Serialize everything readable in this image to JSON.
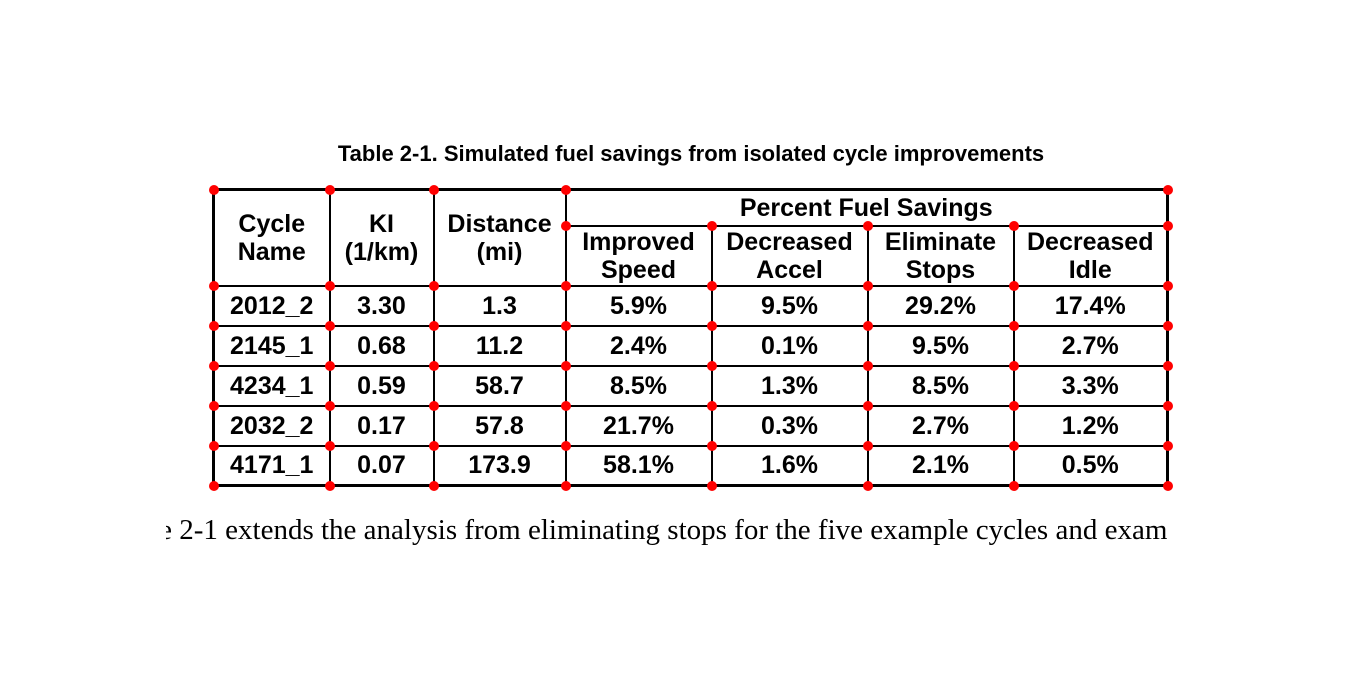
{
  "document": {
    "caption": "Table 2-1. Simulated fuel savings from isolated cycle improvements",
    "body_text_clipped_char": "e",
    "body_text": "2-1 extends the analysis from eliminating stops for the five example cycles and exam"
  },
  "table": {
    "columns": [
      "Cycle\nName",
      "KI\n(1/km)",
      "Distance\n(mi)"
    ],
    "span_header": "Percent Fuel Savings",
    "sub_columns": [
      "Improved\nSpeed",
      "Decreased\nAccel",
      "Eliminate\nStops",
      "Decreased\nIdle"
    ],
    "rows": [
      [
        "2012_2",
        "3.30",
        "1.3",
        "5.9%",
        "9.5%",
        "29.2%",
        "17.4%"
      ],
      [
        "2145_1",
        "0.68",
        "11.2",
        "2.4%",
        "0.1%",
        "9.5%",
        "2.7%"
      ],
      [
        "4234_1",
        "0.59",
        "58.7",
        "8.5%",
        "1.3%",
        "8.5%",
        "3.3%"
      ],
      [
        "2032_2",
        "0.17",
        "57.8",
        "21.7%",
        "0.3%",
        "2.7%",
        "1.2%"
      ],
      [
        "4171_1",
        "0.07",
        "173.9",
        "58.1%",
        "1.6%",
        "2.1%",
        "0.5%"
      ]
    ]
  },
  "annotations": {
    "marker_shape": "circle",
    "marker_color": "#ff0000"
  },
  "colors": {
    "background": "#ffffff",
    "text": "#000000",
    "table_border": "#000000"
  }
}
